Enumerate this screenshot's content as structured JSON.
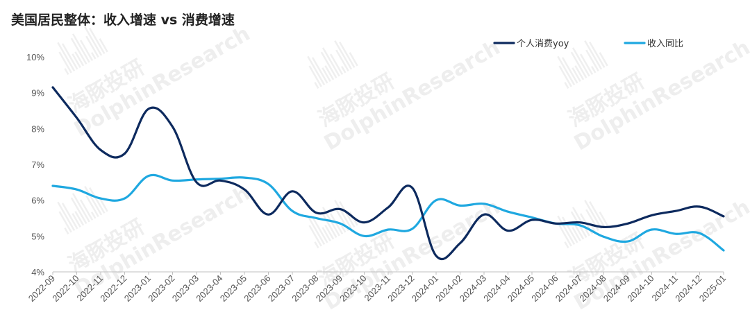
{
  "chart_data": {
    "type": "line",
    "title": "美国居民整体：收入增速 vs 消费增速",
    "xlabel": "",
    "ylabel": "",
    "ylim": [
      4,
      10
    ],
    "yticks": [
      4,
      5,
      6,
      7,
      8,
      9,
      10
    ],
    "ytick_labels": [
      "4%",
      "5%",
      "6%",
      "7%",
      "8%",
      "9%",
      "10%"
    ],
    "grid": false,
    "legend_position": "top-right",
    "categories": [
      "2022-09",
      "2022-10",
      "2022-11",
      "2022-12",
      "2023-01",
      "2023-02",
      "2023-03",
      "2023-04",
      "2023-05",
      "2023-06",
      "2023-07",
      "2023-08",
      "2023-09",
      "2023-10",
      "2023-11",
      "2023-12",
      "2024-01",
      "2024-02",
      "2024-03",
      "2024-04",
      "2024-05",
      "2024-06",
      "2024-07",
      "2024-08",
      "2024-09",
      "2024-10",
      "2024-11",
      "2024-12",
      "2025-01"
    ],
    "series": [
      {
        "name": "个人消费yoy",
        "color": "#0d2a5e",
        "values": [
          9.15,
          8.3,
          7.4,
          7.3,
          8.55,
          8.05,
          6.5,
          6.55,
          6.3,
          5.6,
          6.25,
          5.65,
          5.75,
          5.38,
          5.8,
          6.35,
          4.45,
          4.8,
          5.6,
          5.15,
          5.45,
          5.35,
          5.38,
          5.25,
          5.35,
          5.58,
          5.7,
          5.82,
          5.55
        ]
      },
      {
        "name": "收入同比",
        "color": "#1fa8e0",
        "values": [
          6.4,
          6.3,
          6.05,
          6.05,
          6.68,
          6.55,
          6.58,
          6.6,
          6.63,
          6.45,
          5.7,
          5.5,
          5.35,
          5.0,
          5.18,
          5.2,
          6.0,
          5.85,
          5.9,
          5.68,
          5.52,
          5.35,
          5.3,
          4.98,
          4.85,
          5.18,
          5.06,
          5.08,
          4.6
        ]
      }
    ]
  },
  "watermarks": {
    "brand_cn": "海豚投研",
    "brand_en": "DolphinResearch"
  }
}
